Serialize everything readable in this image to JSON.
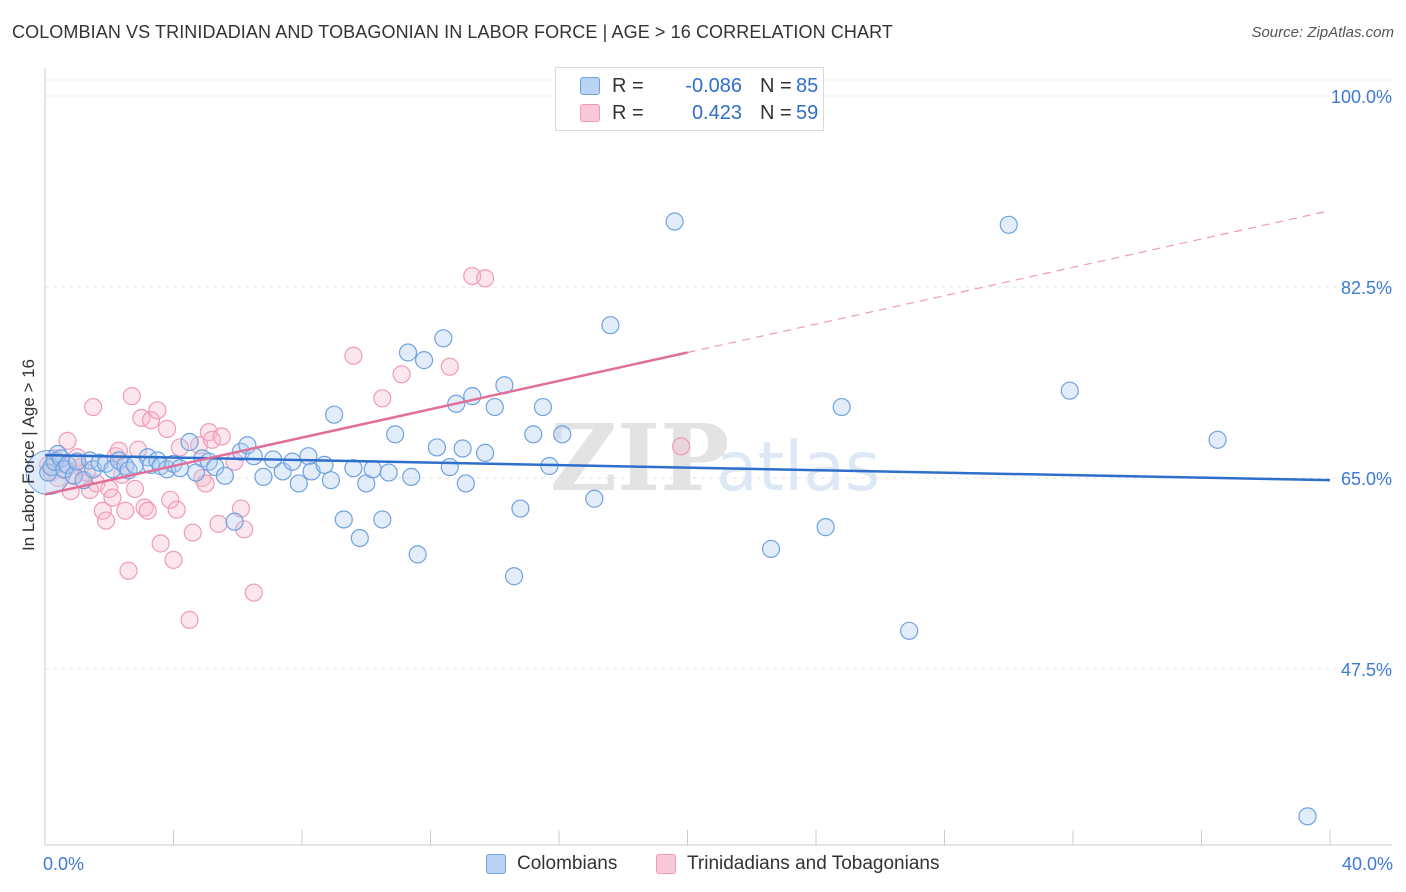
{
  "header": {
    "title": "COLOMBIAN VS TRINIDADIAN AND TOBAGONIAN IN LABOR FORCE | AGE > 16 CORRELATION CHART",
    "source": "Source: ZipAtlas.com"
  },
  "legend": {
    "colombians": {
      "r_label": "R =",
      "r_value": "-0.086",
      "n_label": "N =",
      "n_value": "85"
    },
    "trinidadians": {
      "r_label": "R =",
      "r_value": "0.423",
      "n_label": "N =",
      "n_value": "59"
    }
  },
  "watermark": {
    "zip": "ZIP",
    "atlas": "atlas"
  },
  "chart_data": {
    "type": "scatter",
    "title": "COLOMBIAN VS TRINIDADIAN AND TOBAGONIAN IN LABOR FORCE | AGE > 16 CORRELATION CHART",
    "xlabel": "",
    "ylabel": "In Labor Force | Age > 16",
    "xlim": [
      0,
      40
    ],
    "ylim": [
      30,
      103
    ],
    "x_tick_labels": [
      "0.0%",
      "40.0%"
    ],
    "y_ticks": [
      47.5,
      65.0,
      82.5,
      100.0
    ],
    "y_tick_labels": [
      "47.5%",
      "65.0%",
      "82.5%",
      "100.0%"
    ],
    "grid": true,
    "legend_position": "top-center",
    "colors": {
      "colombians": "#6fa2e0",
      "trinidadians": "#ef9bb8",
      "colombians_line": "#2f6fcc",
      "trinidadians_line": "#e0709a"
    },
    "series": [
      {
        "name": "Colombians",
        "r": -0.086,
        "n": 85,
        "trend": {
          "x": [
            0,
            40
          ],
          "y": [
            67.1,
            64.8
          ]
        },
        "points": [
          [
            0.1,
            65.5
          ],
          [
            0.2,
            66.0
          ],
          [
            0.3,
            66.5
          ],
          [
            0.4,
            67.2
          ],
          [
            0.5,
            66.8
          ],
          [
            0.6,
            65.8
          ],
          [
            0.7,
            66.2
          ],
          [
            0.9,
            65.2
          ],
          [
            1.0,
            66.5
          ],
          [
            1.2,
            64.8
          ],
          [
            1.4,
            66.6
          ],
          [
            1.5,
            65.8
          ],
          [
            1.7,
            66.4
          ],
          [
            1.9,
            66.3
          ],
          [
            2.1,
            65.8
          ],
          [
            2.3,
            66.6
          ],
          [
            2.5,
            66.1
          ],
          [
            2.6,
            65.7
          ],
          [
            2.8,
            66.2
          ],
          [
            3.2,
            66.9
          ],
          [
            3.3,
            66.2
          ],
          [
            3.5,
            66.6
          ],
          [
            3.6,
            66.1
          ],
          [
            3.8,
            65.8
          ],
          [
            4.0,
            66.3
          ],
          [
            4.2,
            65.9
          ],
          [
            4.5,
            68.3
          ],
          [
            4.7,
            65.5
          ],
          [
            4.9,
            66.8
          ],
          [
            5.1,
            66.5
          ],
          [
            5.3,
            66.0
          ],
          [
            5.6,
            65.2
          ],
          [
            5.9,
            61.0
          ],
          [
            6.1,
            67.4
          ],
          [
            6.3,
            68.0
          ],
          [
            6.5,
            67.0
          ],
          [
            6.8,
            65.1
          ],
          [
            7.1,
            66.7
          ],
          [
            7.4,
            65.6
          ],
          [
            7.7,
            66.5
          ],
          [
            7.9,
            64.5
          ],
          [
            8.2,
            67.0
          ],
          [
            8.3,
            65.6
          ],
          [
            8.7,
            66.2
          ],
          [
            8.9,
            64.8
          ],
          [
            9.0,
            70.8
          ],
          [
            9.3,
            61.2
          ],
          [
            9.6,
            65.9
          ],
          [
            9.8,
            59.5
          ],
          [
            10.0,
            64.5
          ],
          [
            10.2,
            65.8
          ],
          [
            10.5,
            61.2
          ],
          [
            10.7,
            65.5
          ],
          [
            10.9,
            69.0
          ],
          [
            11.3,
            76.5
          ],
          [
            11.8,
            75.8
          ],
          [
            11.4,
            65.1
          ],
          [
            11.6,
            58.0
          ],
          [
            12.2,
            67.8
          ],
          [
            12.4,
            77.8
          ],
          [
            12.6,
            66.0
          ],
          [
            12.8,
            71.8
          ],
          [
            13.1,
            64.5
          ],
          [
            13.0,
            67.7
          ],
          [
            13.3,
            72.5
          ],
          [
            13.7,
            67.3
          ],
          [
            14.0,
            71.5
          ],
          [
            14.3,
            73.5
          ],
          [
            14.8,
            62.2
          ],
          [
            14.6,
            56.0
          ],
          [
            15.2,
            69.0
          ],
          [
            15.5,
            71.5
          ],
          [
            15.7,
            66.1
          ],
          [
            16.1,
            69.0
          ],
          [
            17.1,
            63.1
          ],
          [
            17.6,
            79.0
          ],
          [
            19.6,
            88.5
          ],
          [
            22.6,
            58.5
          ],
          [
            24.8,
            71.5
          ],
          [
            24.3,
            60.5
          ],
          [
            26.9,
            51.0
          ],
          [
            30.0,
            88.2
          ],
          [
            31.9,
            73.0
          ],
          [
            36.5,
            68.5
          ],
          [
            39.3,
            34.0
          ]
        ]
      },
      {
        "name": "Trinidadians and Tobagonians",
        "r": 0.423,
        "n": 59,
        "trend": {
          "x": [
            0,
            20
          ],
          "y": [
            63.5,
            76.5
          ]
        },
        "trend_extension": {
          "x": [
            20,
            40
          ],
          "y": [
            76.5,
            89.5
          ]
        },
        "points": [
          [
            0.1,
            66.2
          ],
          [
            0.2,
            65.5
          ],
          [
            0.3,
            66.8
          ],
          [
            0.4,
            65.0
          ],
          [
            0.5,
            66.3
          ],
          [
            0.6,
            65.7
          ],
          [
            0.7,
            68.4
          ],
          [
            0.8,
            63.8
          ],
          [
            0.9,
            65.2
          ],
          [
            1.0,
            66.9
          ],
          [
            1.1,
            66.0
          ],
          [
            1.2,
            64.8
          ],
          [
            1.3,
            65.5
          ],
          [
            1.4,
            63.9
          ],
          [
            1.5,
            71.5
          ],
          [
            1.6,
            64.5
          ],
          [
            1.8,
            62.0
          ],
          [
            1.9,
            61.1
          ],
          [
            2.0,
            64.0
          ],
          [
            2.1,
            63.2
          ],
          [
            2.2,
            67.0
          ],
          [
            2.3,
            67.5
          ],
          [
            2.4,
            65.3
          ],
          [
            2.5,
            62.0
          ],
          [
            2.6,
            56.5
          ],
          [
            2.7,
            72.5
          ],
          [
            2.8,
            64.0
          ],
          [
            2.9,
            67.6
          ],
          [
            3.0,
            70.5
          ],
          [
            3.1,
            62.3
          ],
          [
            3.2,
            62.0
          ],
          [
            3.3,
            70.3
          ],
          [
            3.5,
            71.2
          ],
          [
            3.6,
            59.0
          ],
          [
            3.8,
            69.5
          ],
          [
            3.9,
            63.0
          ],
          [
            4.0,
            57.5
          ],
          [
            4.1,
            62.1
          ],
          [
            4.2,
            67.8
          ],
          [
            4.5,
            52.0
          ],
          [
            4.6,
            60.0
          ],
          [
            4.8,
            68.0
          ],
          [
            4.9,
            65.0
          ],
          [
            5.0,
            64.5
          ],
          [
            5.1,
            69.2
          ],
          [
            5.2,
            68.5
          ],
          [
            5.4,
            60.8
          ],
          [
            5.5,
            68.8
          ],
          [
            5.9,
            66.5
          ],
          [
            6.1,
            62.2
          ],
          [
            6.2,
            60.3
          ],
          [
            6.5,
            54.5
          ],
          [
            9.6,
            76.2
          ],
          [
            10.5,
            72.3
          ],
          [
            11.1,
            74.5
          ],
          [
            12.6,
            75.2
          ],
          [
            13.3,
            83.5
          ],
          [
            13.7,
            83.3
          ],
          [
            19.8,
            67.9
          ]
        ]
      }
    ]
  }
}
